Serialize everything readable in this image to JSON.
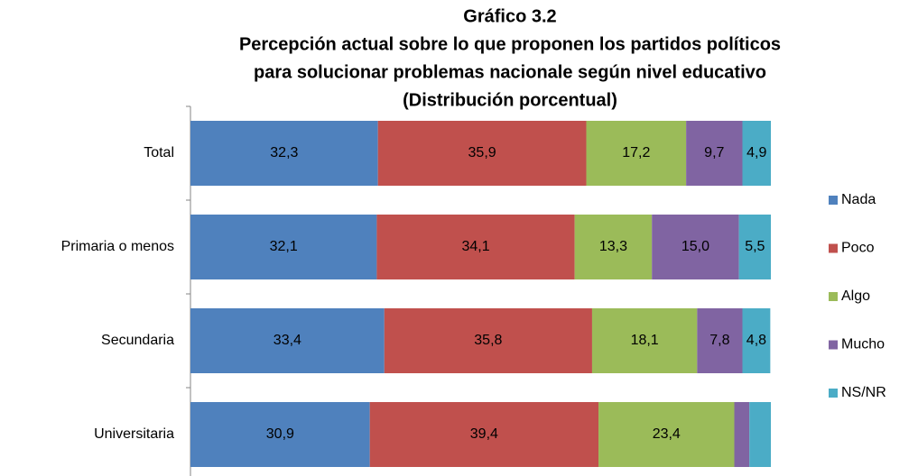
{
  "chart_data": {
    "type": "stacked-bar-horizontal",
    "title": [
      "Gráfico 3.2",
      "Percepción actual sobre lo que proponen los partidos políticos",
      "para solucionar problemas nacionale según nivel educativo",
      "(Distribución porcentual)"
    ],
    "categories": [
      "Total",
      "Primaria o menos",
      "Secundaria",
      "Universitaria"
    ],
    "xlim": [
      0,
      100
    ],
    "legend": "right",
    "series": [
      {
        "name": "Nada",
        "color": "#4f81bd",
        "values": [
          32.3,
          32.1,
          33.4,
          30.9
        ],
        "value_labels": [
          "32,3",
          "32,1",
          "33,4",
          "30,9"
        ]
      },
      {
        "name": "Poco",
        "color": "#c0504d",
        "values": [
          35.9,
          34.1,
          35.8,
          39.4
        ],
        "value_labels": [
          "35,9",
          "34,1",
          "35,8",
          "39,4"
        ]
      },
      {
        "name": "Algo",
        "color": "#9bbb59",
        "values": [
          17.2,
          13.3,
          18.1,
          23.4
        ],
        "value_labels": [
          "17,2",
          "13,3",
          "18,1",
          "23,4"
        ]
      },
      {
        "name": "Mucho",
        "color": "#8064a2",
        "values": [
          9.7,
          15.0,
          7.8,
          2.6
        ],
        "value_labels": [
          "9,7",
          "15,0",
          "7,8",
          null
        ]
      },
      {
        "name": "NS/NR",
        "color": "#4bacc6",
        "values": [
          4.9,
          5.5,
          4.8,
          3.7
        ],
        "value_labels": [
          "4,9",
          "5,5",
          "4,8",
          null
        ]
      }
    ]
  }
}
